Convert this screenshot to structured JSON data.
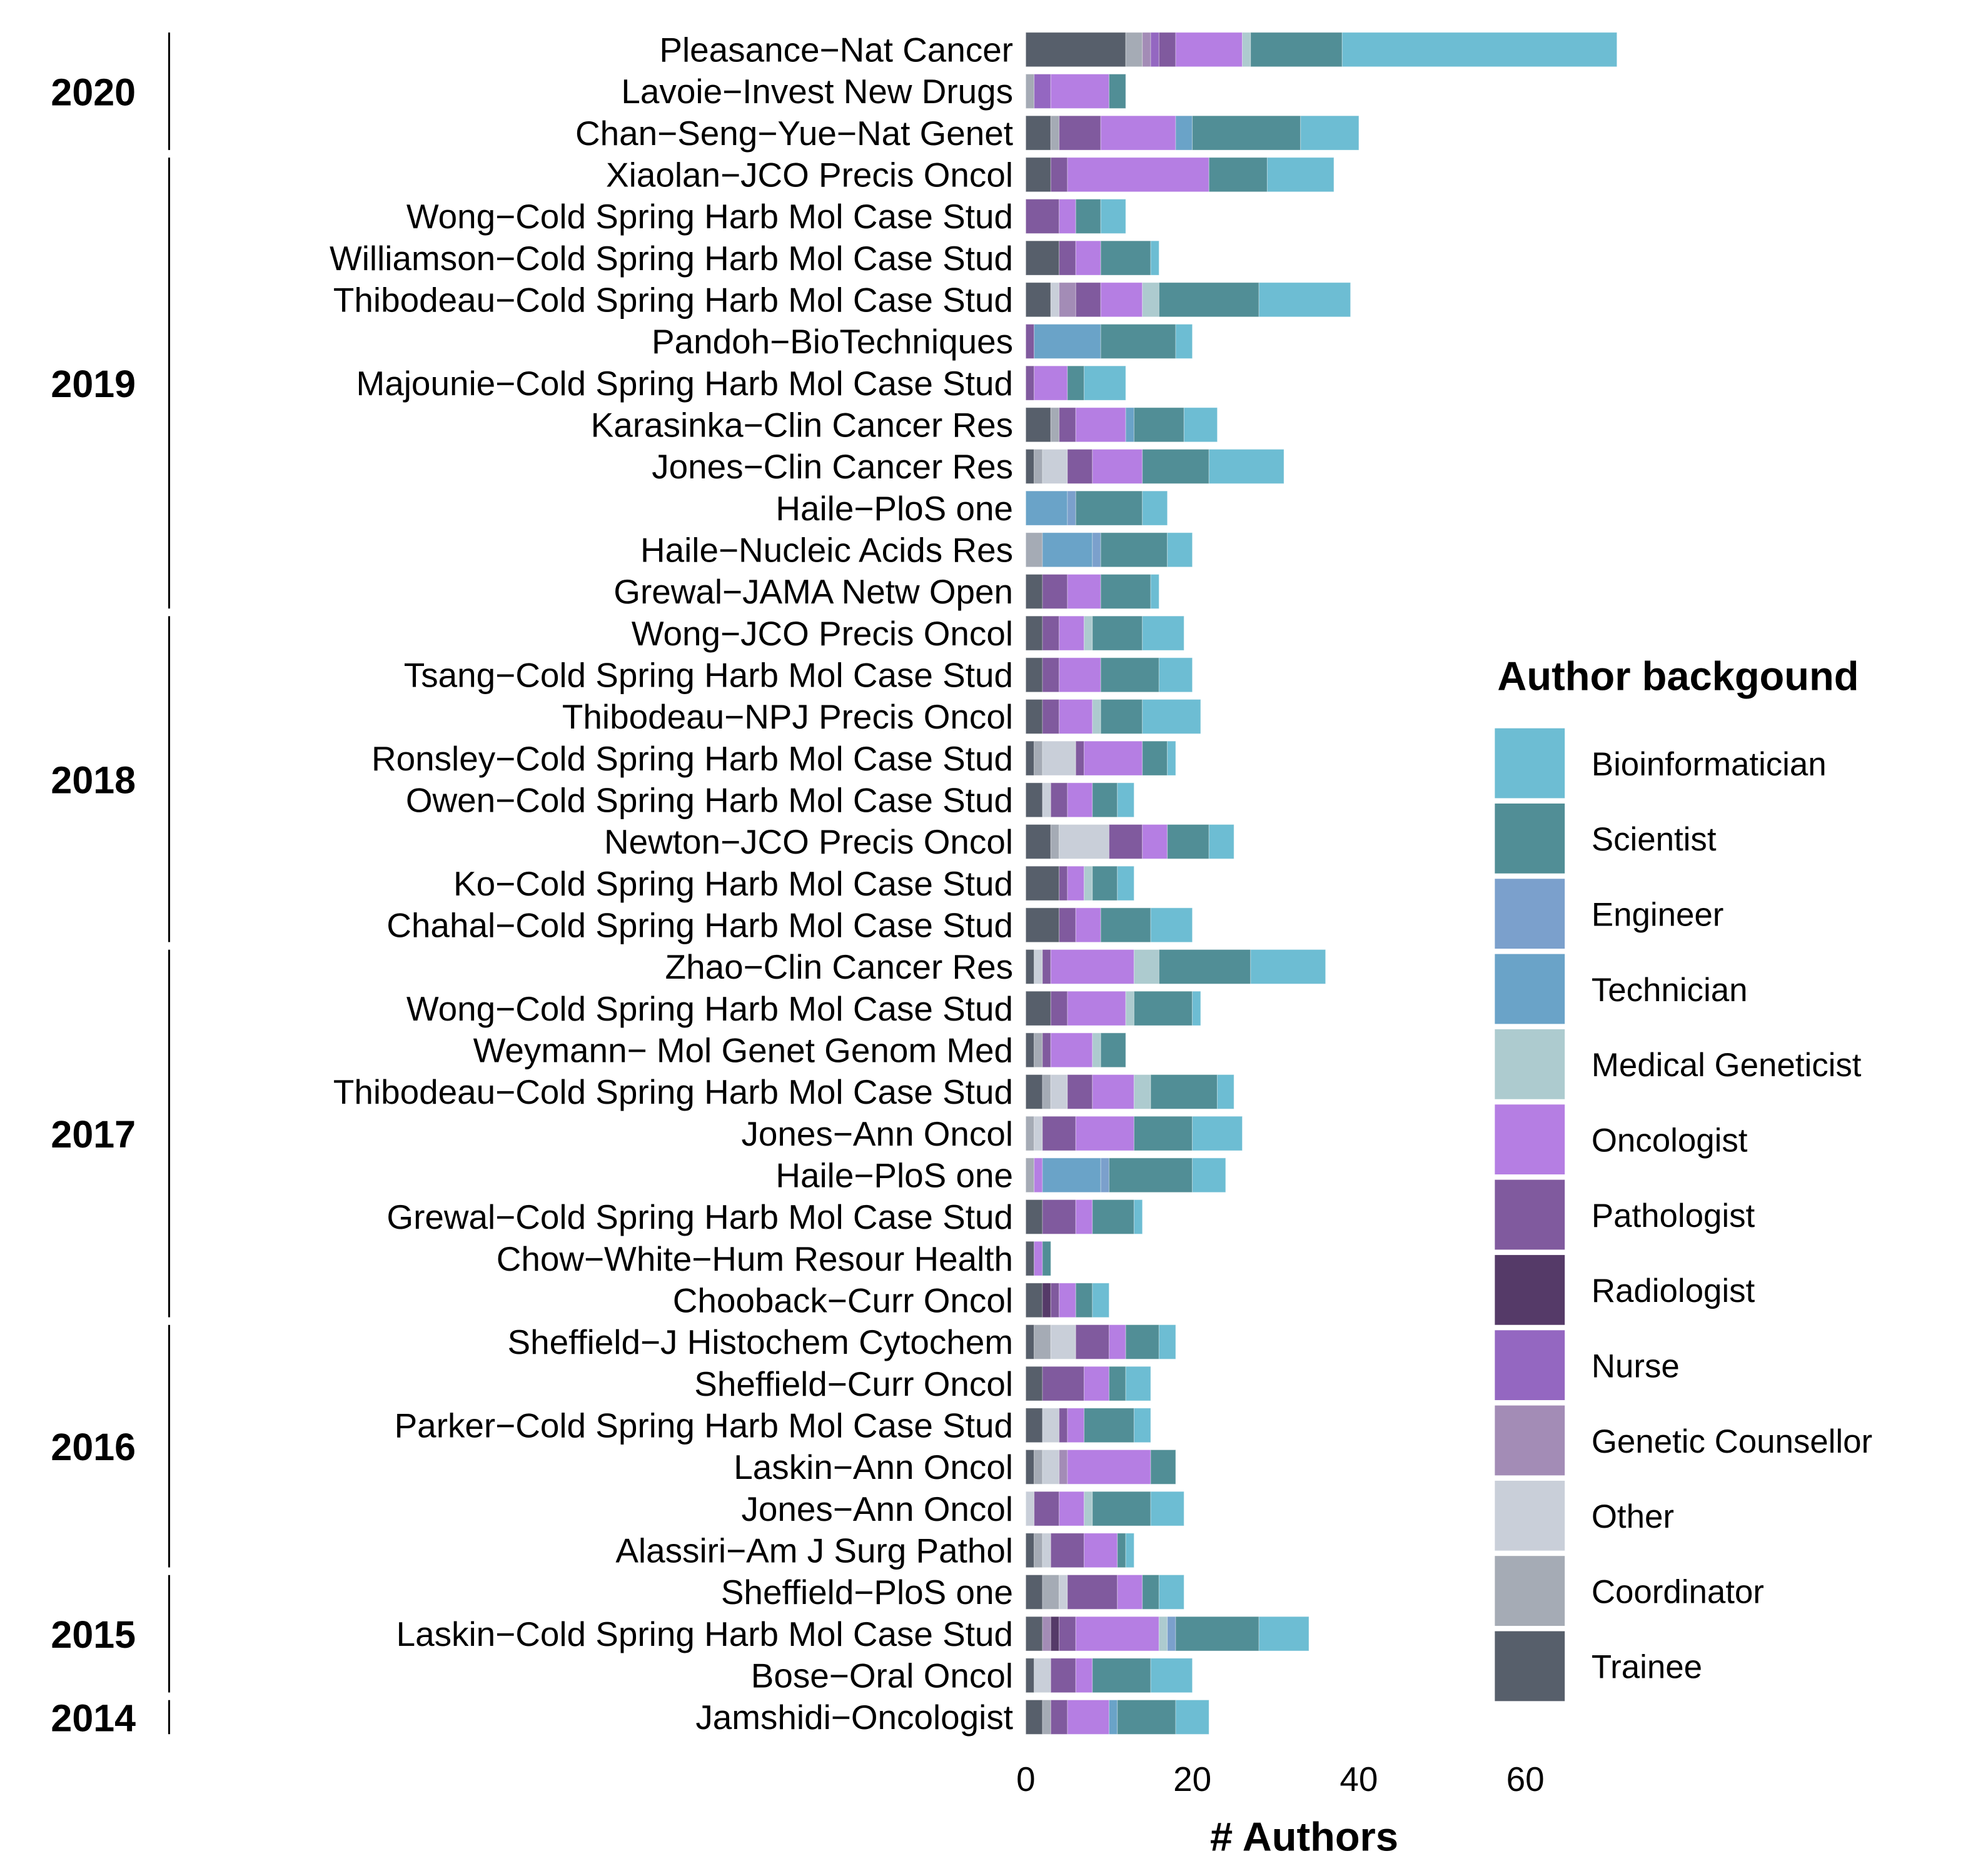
{
  "chart_data": {
    "type": "bar",
    "orientation": "horizontal",
    "stacked": true,
    "xlabel": "# Authors",
    "xlim": [
      0,
      70
    ],
    "xticks": [
      0,
      20,
      40,
      60
    ],
    "grid": false,
    "legend": {
      "title": "Author backgound",
      "placement": "right"
    },
    "categories": [
      "Pleasance−Nat Cancer",
      "Lavoie−Invest New Drugs",
      "Chan−Seng−Yue−Nat Genet",
      "Xiaolan−JCO Precis Oncol",
      "Wong−Cold Spring Harb Mol Case Stud",
      "Williamson−Cold Spring Harb Mol Case Stud",
      "Thibodeau−Cold Spring Harb Mol Case Stud",
      "Pandoh−BioTechniques",
      "Majounie−Cold Spring Harb Mol Case Stud",
      "Karasinka−Clin Cancer Res",
      "Jones−Clin Cancer Res",
      "Haile−PloS one",
      "Haile−Nucleic Acids Res",
      "Grewal−JAMA Netw Open",
      "Wong−JCO Precis Oncol",
      "Tsang−Cold Spring Harb Mol Case Stud",
      "Thibodeau−NPJ Precis Oncol",
      "Ronsley−Cold Spring Harb Mol Case Stud",
      "Owen−Cold Spring Harb Mol Case Stud",
      "Newton−JCO Precis Oncol",
      "Ko−Cold Spring Harb Mol Case Stud",
      "Chahal−Cold Spring Harb Mol Case Stud",
      "Zhao−Clin Cancer Res",
      "Wong−Cold Spring Harb Mol Case Stud",
      "Weymann− Mol Genet Genom Med",
      "Thibodeau−Cold Spring Harb Mol Case Stud",
      "Jones−Ann Oncol",
      "Haile−PloS one",
      "Grewal−Cold Spring Harb Mol Case Stud",
      "Chow−White−Hum Resour Health",
      "Chooback−Curr Oncol",
      "Sheffield−J Histochem Cytochem",
      "Sheffield−Curr Oncol",
      "Parker−Cold Spring Harb Mol Case Stud",
      "Laskin−Ann Oncol",
      "Jones−Ann Oncol",
      "Alassiri−Am J Surg Pathol",
      "Sheffield−PloS one",
      "Laskin−Cold Spring Harb Mol Case Stud",
      "Bose−Oral Oncol",
      "Jamshidi−Oncologist"
    ],
    "year_groups": [
      {
        "label": "2020",
        "rows": 3
      },
      {
        "label": "2019",
        "rows": 11
      },
      {
        "label": "2018",
        "rows": 8
      },
      {
        "label": "2017",
        "rows": 9
      },
      {
        "label": "2016",
        "rows": 6
      },
      {
        "label": "2015",
        "rows": 3
      },
      {
        "label": "2014",
        "rows": 1
      }
    ],
    "series": [
      {
        "name": "Bioinformatician",
        "color": "#6dbdd3",
        "values": [
          33,
          0,
          7,
          8,
          3,
          1,
          11,
          2,
          5,
          4,
          9,
          3,
          3,
          1,
          5,
          4,
          7,
          1,
          2,
          3,
          2,
          5,
          9,
          1,
          0,
          2,
          6,
          4,
          1,
          0,
          2,
          2,
          3,
          2,
          0,
          4,
          1,
          3,
          6,
          5,
          4
        ]
      },
      {
        "name": "Scientist",
        "color": "#518e96",
        "values": [
          11,
          2,
          13,
          7,
          3,
          6,
          12,
          9,
          2,
          6,
          8,
          8,
          8,
          6,
          6,
          7,
          5,
          3,
          3,
          5,
          3,
          6,
          11,
          7,
          3,
          8,
          7,
          10,
          5,
          1,
          2,
          4,
          2,
          6,
          3,
          7,
          1,
          2,
          10,
          7,
          7
        ]
      },
      {
        "name": "Engineer",
        "color": "#7ba0cc",
        "values": [
          0,
          0,
          0,
          0,
          0,
          0,
          0,
          0,
          0,
          0,
          0,
          1,
          1,
          0,
          0,
          0,
          0,
          0,
          0,
          0,
          0,
          0,
          0,
          0,
          0,
          0,
          0,
          1,
          0,
          0,
          0,
          0,
          0,
          0,
          0,
          0,
          0,
          0,
          1,
          0,
          0
        ]
      },
      {
        "name": "Technician",
        "color": "#6aa3c8",
        "values": [
          0,
          0,
          2,
          0,
          0,
          0,
          0,
          8,
          0,
          1,
          0,
          5,
          6,
          0,
          0,
          0,
          0,
          0,
          0,
          0,
          0,
          0,
          0,
          0,
          0,
          0,
          0,
          7,
          0,
          0,
          0,
          0,
          0,
          0,
          0,
          0,
          0,
          0,
          0,
          0,
          1
        ]
      },
      {
        "name": "Medical Geneticist",
        "color": "#adcbcf",
        "values": [
          1,
          0,
          0,
          0,
          0,
          0,
          2,
          0,
          0,
          0,
          0,
          0,
          0,
          0,
          1,
          0,
          1,
          0,
          0,
          0,
          1,
          0,
          3,
          1,
          1,
          2,
          0,
          0,
          0,
          0,
          0,
          0,
          0,
          0,
          0,
          1,
          0,
          0,
          1,
          0,
          0
        ]
      },
      {
        "name": "Oncologist",
        "color": "#b57ee3",
        "values": [
          8,
          7,
          9,
          17,
          2,
          3,
          5,
          0,
          4,
          6,
          6,
          0,
          0,
          4,
          3,
          5,
          4,
          7,
          3,
          3,
          2,
          3,
          10,
          7,
          5,
          5,
          7,
          1,
          2,
          1,
          2,
          2,
          3,
          2,
          10,
          3,
          4,
          3,
          10,
          2,
          5
        ]
      },
      {
        "name": "Pathologist",
        "color": "#805a9e",
        "values": [
          2,
          0,
          5,
          2,
          4,
          2,
          3,
          1,
          1,
          2,
          3,
          0,
          0,
          3,
          2,
          2,
          2,
          1,
          2,
          4,
          1,
          2,
          1,
          2,
          1,
          3,
          4,
          0,
          4,
          0,
          1,
          4,
          5,
          1,
          0,
          3,
          4,
          6,
          2,
          3,
          2
        ]
      },
      {
        "name": "Radiologist",
        "color": "#553a68",
        "values": [
          0,
          0,
          0,
          0,
          0,
          0,
          0,
          0,
          0,
          0,
          0,
          0,
          0,
          0,
          0,
          0,
          0,
          0,
          0,
          0,
          0,
          0,
          0,
          0,
          0,
          0,
          0,
          0,
          0,
          0,
          1,
          0,
          0,
          0,
          0,
          0,
          0,
          0,
          1,
          0,
          0
        ]
      },
      {
        "name": "Nurse",
        "color": "#9467c1",
        "values": [
          1,
          2,
          0,
          0,
          0,
          0,
          0,
          0,
          0,
          0,
          0,
          0,
          0,
          0,
          0,
          0,
          0,
          0,
          0,
          0,
          0,
          0,
          0,
          0,
          0,
          0,
          0,
          0,
          0,
          0,
          0,
          0,
          0,
          0,
          0,
          0,
          0,
          0,
          0,
          0,
          0
        ]
      },
      {
        "name": "Genetic Counsellor",
        "color": "#a38cb6",
        "values": [
          1,
          0,
          0,
          0,
          0,
          0,
          2,
          0,
          0,
          0,
          0,
          0,
          0,
          0,
          0,
          0,
          0,
          0,
          0,
          0,
          0,
          0,
          0,
          0,
          0,
          0,
          0,
          0,
          0,
          0,
          0,
          0,
          0,
          0,
          1,
          0,
          0,
          0,
          1,
          0,
          0
        ]
      },
      {
        "name": "Other",
        "color": "#c9cfd9",
        "values": [
          0,
          0,
          0,
          0,
          0,
          0,
          1,
          0,
          0,
          0,
          3,
          0,
          0,
          0,
          0,
          0,
          0,
          4,
          1,
          6,
          0,
          0,
          1,
          0,
          0,
          2,
          1,
          0,
          0,
          0,
          0,
          3,
          0,
          2,
          2,
          1,
          1,
          1,
          0,
          2,
          0
        ]
      },
      {
        "name": "Coordinator",
        "color": "#a5abb5",
        "values": [
          2,
          1,
          1,
          0,
          0,
          0,
          0,
          0,
          0,
          1,
          1,
          0,
          2,
          0,
          0,
          0,
          0,
          1,
          0,
          1,
          0,
          0,
          0,
          0,
          1,
          1,
          1,
          1,
          0,
          0,
          0,
          2,
          0,
          0,
          1,
          0,
          1,
          2,
          0,
          0,
          1
        ]
      },
      {
        "name": "Trainee",
        "color": "#575f6b",
        "values": [
          12,
          0,
          3,
          3,
          0,
          4,
          3,
          0,
          0,
          3,
          1,
          0,
          0,
          2,
          2,
          2,
          2,
          1,
          2,
          3,
          4,
          4,
          1,
          3,
          1,
          2,
          0,
          0,
          2,
          1,
          2,
          1,
          2,
          2,
          1,
          0,
          1,
          2,
          2,
          1,
          2
        ]
      }
    ]
  }
}
